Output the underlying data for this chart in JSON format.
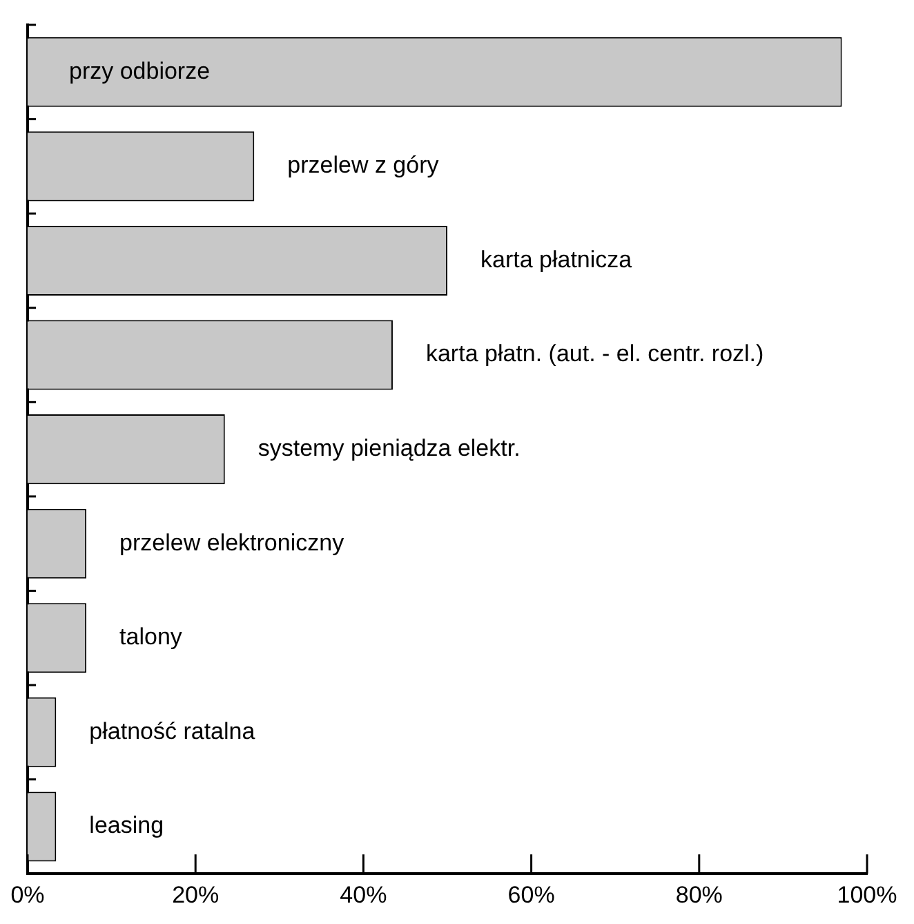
{
  "chart_data": {
    "type": "bar",
    "orientation": "horizontal",
    "tick_labels": "x",
    "grid": false,
    "legend": false,
    "categories": [
      "przy odbiorze",
      "przelew z góry",
      "karta płatnicza",
      "karta płatn. (aut. - el. centr. rozl.)",
      "systemy pieniądza elektr.",
      "przelew elektroniczny",
      "talony",
      "płatność ratalna",
      "leasing"
    ],
    "values": [
      97,
      27,
      50,
      43.5,
      23.5,
      7,
      7,
      3.4,
      3.4
    ],
    "color": "#c8c8c8",
    "xlim": [
      0,
      100
    ],
    "xticks": [
      {
        "value": 0,
        "label": "0%"
      },
      {
        "value": 20,
        "label": "20%"
      },
      {
        "value": 40,
        "label": "40%"
      },
      {
        "value": 60,
        "label": "60%"
      },
      {
        "value": 80,
        "label": "80%"
      },
      {
        "value": 100,
        "label": "100%"
      }
    ]
  }
}
